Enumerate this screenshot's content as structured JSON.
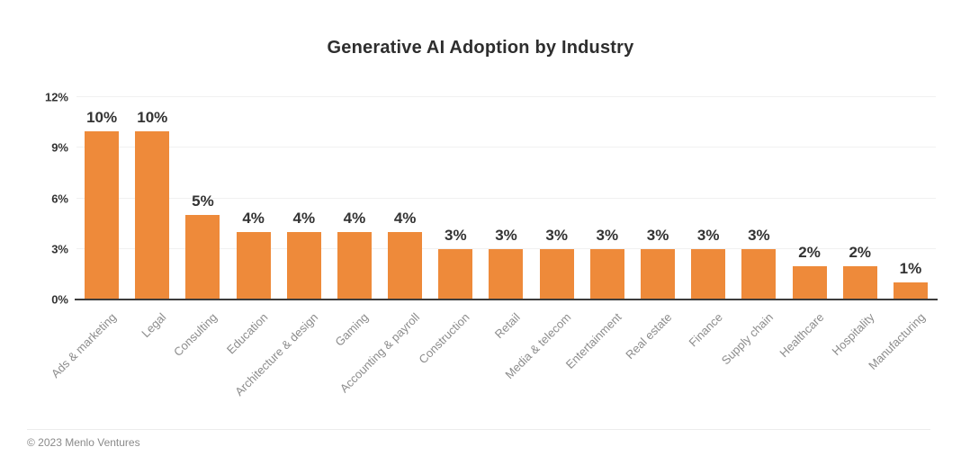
{
  "footer": {
    "text": "© 2023 Menlo Ventures"
  },
  "colors": {
    "bar": "#ee8a3a",
    "grid": "#f1f1f1",
    "axis_line": "#3d3d3d",
    "text_dark": "#333333",
    "text_gray": "#8c8c8c"
  },
  "chart_data": {
    "type": "bar",
    "title": "Generative AI Adoption by Industry",
    "categories": [
      "Ads & marketing",
      "Legal",
      "Consulting",
      "Education",
      "Architecture & design",
      "Gaming",
      "Accounting & payroll",
      "Construction",
      "Retail",
      "Media & telecom",
      "Entertainment",
      "Real estate",
      "Finance",
      "Supply chain",
      "Healthcare",
      "Hospitality",
      "Manufacturing"
    ],
    "values": [
      10,
      10,
      5,
      4,
      4,
      4,
      4,
      3,
      3,
      3,
      3,
      3,
      3,
      3,
      2,
      2,
      1
    ],
    "value_labels": [
      "10%",
      "10%",
      "5%",
      "4%",
      "4%",
      "4%",
      "4%",
      "3%",
      "3%",
      "3%",
      "3%",
      "3%",
      "3%",
      "3%",
      "2%",
      "2%",
      "1%"
    ],
    "xlabel": "",
    "ylabel": "",
    "ylim": [
      0,
      12
    ],
    "yticks": [
      0,
      3,
      6,
      9,
      12
    ],
    "ytick_labels": [
      "0%",
      "3%",
      "6%",
      "9%",
      "12%"
    ],
    "grid": "horizontal",
    "legend": "none",
    "bar_color": "#ee8a3a"
  }
}
